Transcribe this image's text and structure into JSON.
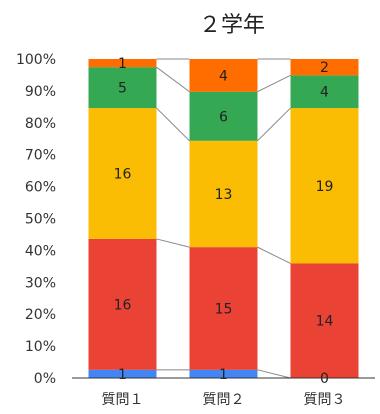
{
  "chart_data": {
    "type": "bar",
    "stacked": true,
    "normalized": true,
    "title": "２学年",
    "categories": [
      "質問１",
      "質問２",
      "質問３"
    ],
    "series": [
      {
        "values": [
          1,
          1,
          0
        ],
        "color": "#4285f4"
      },
      {
        "values": [
          16,
          15,
          14
        ],
        "color": "#ea4335"
      },
      {
        "values": [
          16,
          13,
          19
        ],
        "color": "#fbbc04"
      },
      {
        "values": [
          5,
          6,
          4
        ],
        "color": "#34a853"
      },
      {
        "values": [
          1,
          4,
          2
        ],
        "color": "#ff6d01"
      }
    ],
    "yticks": [
      "0%",
      "10%",
      "20%",
      "30%",
      "40%",
      "50%",
      "60%",
      "70%",
      "80%",
      "90%",
      "100%"
    ],
    "ylim": [
      0,
      100
    ],
    "series_lines": true,
    "legend": "none"
  }
}
